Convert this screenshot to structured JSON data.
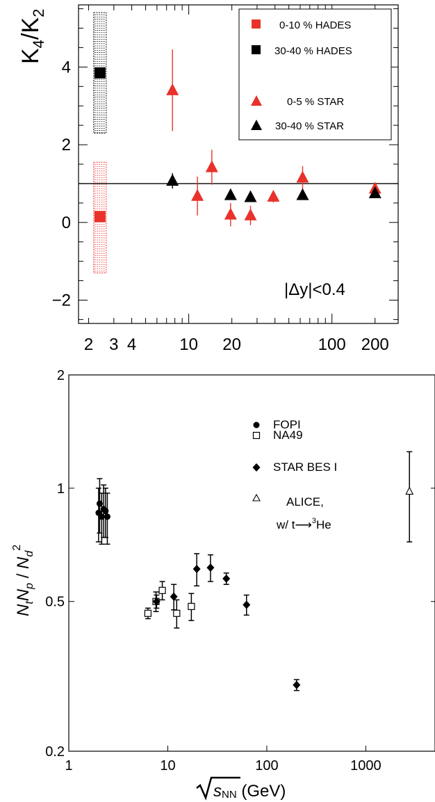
{
  "chart_data": [
    {
      "type": "scatter",
      "ylabel": "K4/K2",
      "ylabel_parts": {
        "base1": "K",
        "sub1": "4",
        "sep": "/",
        "base2": "K",
        "sub2": "2"
      },
      "x_scale": "log",
      "xlim": [
        1.7,
        290
      ],
      "ylim": [
        -2.6,
        5.6
      ],
      "x_ticklabels": [
        "2",
        "3",
        "4",
        "10",
        "20",
        "100",
        "200"
      ],
      "y_ticklabels": [
        "−2",
        "0",
        "2",
        "4"
      ],
      "x_tickvalues": [
        2,
        3,
        4,
        10,
        20,
        100,
        200
      ],
      "y_tickvalues": [
        -2,
        0,
        2,
        4
      ],
      "reference_line_y": 1,
      "annotation": "|Δy|<0.4",
      "legend_position": "top-right",
      "colors": {
        "red": "#e8322b",
        "black": "#000000"
      },
      "series": [
        {
          "name": "0-10 % HADES",
          "marker": "square",
          "color": "#e8322b",
          "points": [
            {
              "x": 2.4,
              "y": 0.15,
              "syst_lo": -1.3,
              "syst_hi": 1.55
            }
          ]
        },
        {
          "name": "30-40 % HADES",
          "marker": "square",
          "color": "#000000",
          "points": [
            {
              "x": 2.4,
              "y": 3.85,
              "syst_lo": 2.3,
              "syst_hi": 5.4
            }
          ]
        },
        {
          "name": "0-5 % STAR",
          "marker": "triangle",
          "color": "#e8322b",
          "points": [
            {
              "x": 7.7,
              "y": 3.4,
              "err": 1.05
            },
            {
              "x": 11.5,
              "y": 0.68,
              "err": 0.5
            },
            {
              "x": 14.5,
              "y": 1.42,
              "err": 0.45
            },
            {
              "x": 19.6,
              "y": 0.2,
              "err": 0.3
            },
            {
              "x": 27,
              "y": 0.18,
              "err": 0.25
            },
            {
              "x": 39,
              "y": 0.66,
              "err": 0.15
            },
            {
              "x": 62.4,
              "y": 1.15,
              "err": 0.3
            },
            {
              "x": 200,
              "y": 0.87,
              "err": 0.1
            }
          ]
        },
        {
          "name": "30-40 % STAR",
          "marker": "triangle",
          "color": "#000000",
          "points": [
            {
              "x": 7.7,
              "y": 1.07,
              "err": 0.2
            },
            {
              "x": 19.6,
              "y": 0.7,
              "err": 0.1
            },
            {
              "x": 27,
              "y": 0.65,
              "err": 0.08
            },
            {
              "x": 62.4,
              "y": 0.7,
              "err": 0.08
            },
            {
              "x": 200,
              "y": 0.75,
              "err": 0.05
            }
          ]
        }
      ]
    },
    {
      "type": "scatter",
      "ylabel_parts": {
        "n1": "N",
        "s1": "t",
        "n2": "N",
        "s2": "p",
        "slash": " / ",
        "n3": "N",
        "s3": "d",
        "sup": "2"
      },
      "xlabel_parts": {
        "var": "s",
        "sub": "NN",
        "unit": " (GeV)"
      },
      "x_scale": "log",
      "y_scale": "log",
      "xlim": [
        1,
        5000
      ],
      "ylim": [
        0.2,
        2
      ],
      "x_ticklabels": [
        "1",
        "10",
        "100",
        "1000"
      ],
      "y_ticklabels": [
        "0.2",
        "0.5",
        "1",
        "2"
      ],
      "x_tickvalues": [
        1,
        10,
        100,
        1000
      ],
      "y_tickvalues": [
        0.2,
        0.5,
        1,
        2
      ],
      "legend_position": "top-right",
      "series": [
        {
          "name": "FOPI",
          "marker": "circle-filled",
          "points": [
            {
              "x": 2.0,
              "y": 0.86,
              "err": 0.14
            },
            {
              "x": 2.05,
              "y": 0.91,
              "err": 0.15
            },
            {
              "x": 2.15,
              "y": 0.84,
              "err": 0.13
            },
            {
              "x": 2.25,
              "y": 0.88,
              "err": 0.14
            },
            {
              "x": 2.35,
              "y": 0.87,
              "err": 0.13
            },
            {
              "x": 2.45,
              "y": 0.84,
              "err": 0.13
            }
          ]
        },
        {
          "name": "NA49",
          "marker": "square-open",
          "points": [
            {
              "x": 6.3,
              "y": 0.465,
              "err": 0.015
            },
            {
              "x": 7.6,
              "y": 0.5,
              "err": 0.03
            },
            {
              "x": 8.8,
              "y": 0.535,
              "err": 0.03
            },
            {
              "x": 12.3,
              "y": 0.465,
              "err": 0.04
            },
            {
              "x": 17.3,
              "y": 0.485,
              "err": 0.04
            }
          ]
        },
        {
          "name": "STAR BES I",
          "marker": "diamond-filled",
          "points": [
            {
              "x": 7.7,
              "y": 0.5,
              "err": 0.02
            },
            {
              "x": 11.5,
              "y": 0.515,
              "err": 0.04
            },
            {
              "x": 19.6,
              "y": 0.61,
              "err": 0.06
            },
            {
              "x": 27,
              "y": 0.615,
              "err": 0.05
            },
            {
              "x": 39,
              "y": 0.575,
              "err": 0.02
            },
            {
              "x": 62.4,
              "y": 0.49,
              "err": 0.03
            },
            {
              "x": 200,
              "y": 0.3,
              "err": 0.01
            }
          ]
        },
        {
          "name_parts": {
            "line1": "ALICE,",
            "line2": "w/ t",
            "arrow": "⟶",
            "sup": "3",
            "rest": "He"
          },
          "marker": "triangle-open",
          "points": [
            {
              "x": 2760,
              "y": 0.98,
              "err_lo": 0.26,
              "err_hi": 0.27
            }
          ]
        }
      ]
    }
  ]
}
